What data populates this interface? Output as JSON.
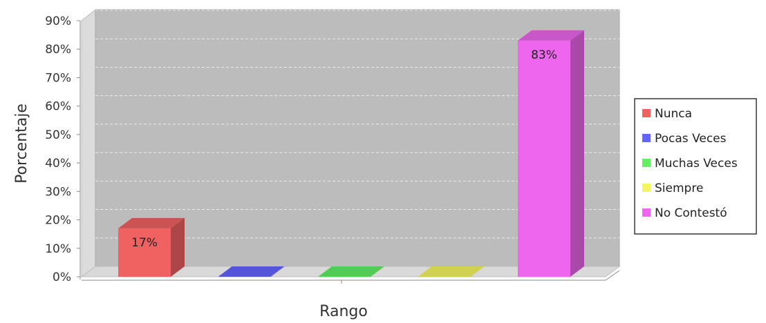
{
  "chart_data": {
    "type": "bar",
    "ylabel": "Porcentaje",
    "xlabel": "Rango",
    "ylim": [
      0,
      90
    ],
    "y_ticks": [
      "0%",
      "10%",
      "20%",
      "30%",
      "40%",
      "50%",
      "60%",
      "70%",
      "80%",
      "90%"
    ],
    "grid": true,
    "three_d": true,
    "legend_position": "right",
    "series": [
      {
        "name": "Nunca",
        "value": 17,
        "label": "17%",
        "color": "#f06262"
      },
      {
        "name": "Pocas Veces",
        "value": 0,
        "label": "",
        "color": "#6464ff"
      },
      {
        "name": "Muchas Veces",
        "value": 0,
        "label": "",
        "color": "#62f062"
      },
      {
        "name": "Siempre",
        "value": 0,
        "label": "",
        "color": "#f5f562"
      },
      {
        "name": "No Contestó",
        "value": 83,
        "label": "83%",
        "color": "#ee66ee"
      }
    ]
  }
}
